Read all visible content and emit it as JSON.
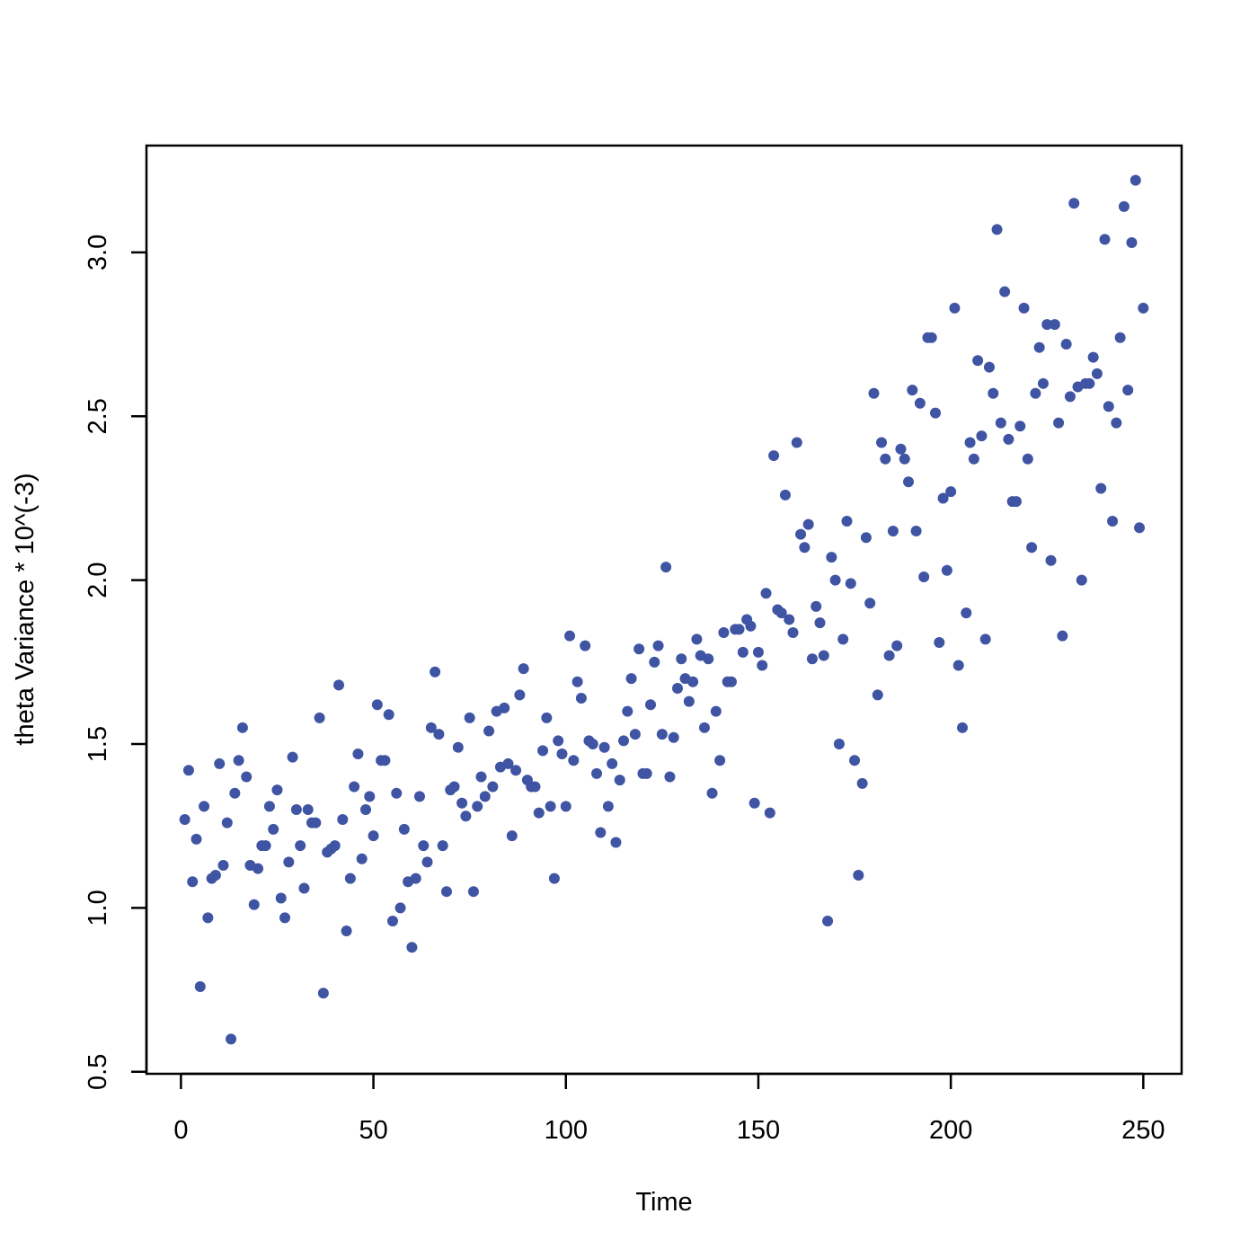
{
  "chart_data": {
    "type": "scatter",
    "xlabel": "Time",
    "ylabel": "theta Variance * 10^(-3)",
    "color": "#3f54a3",
    "xlim": [
      -8.96,
      259.96
    ],
    "ylim": [
      0.494,
      3.326
    ],
    "xticks": [
      0,
      50,
      100,
      150,
      200,
      250
    ],
    "yticks": [
      0.5,
      {
        "value": 1,
        "label": "1.0"
      },
      1.5,
      {
        "value": 2,
        "label": "2.0"
      },
      2.5,
      {
        "value": 3,
        "label": "3.0"
      }
    ],
    "x": [
      1,
      2,
      3,
      4,
      5,
      6,
      7,
      8,
      9,
      10,
      11,
      12,
      13,
      14,
      15,
      16,
      17,
      18,
      19,
      20,
      21,
      22,
      23,
      24,
      25,
      26,
      27,
      28,
      29,
      30,
      31,
      32,
      33,
      34,
      35,
      36,
      37,
      38,
      39,
      40,
      41,
      42,
      43,
      44,
      45,
      46,
      47,
      48,
      49,
      50,
      51,
      52,
      53,
      54,
      55,
      56,
      57,
      58,
      59,
      60,
      61,
      62,
      63,
      64,
      65,
      66,
      67,
      68,
      69,
      70,
      71,
      72,
      73,
      74,
      75,
      76,
      77,
      78,
      79,
      80,
      81,
      82,
      83,
      84,
      85,
      86,
      87,
      88,
      89,
      90,
      91,
      92,
      93,
      94,
      95,
      96,
      97,
      98,
      99,
      100,
      101,
      102,
      103,
      104,
      105,
      106,
      107,
      108,
      109,
      110,
      111,
      112,
      113,
      114,
      115,
      116,
      117,
      118,
      119,
      120,
      121,
      122,
      123,
      124,
      125,
      126,
      127,
      128,
      129,
      130,
      131,
      132,
      133,
      134,
      135,
      136,
      137,
      138,
      139,
      140,
      141,
      142,
      143,
      144,
      145,
      146,
      147,
      148,
      149,
      150,
      151,
      152,
      153,
      154,
      155,
      156,
      157,
      158,
      159,
      160,
      161,
      162,
      163,
      164,
      165,
      166,
      167,
      168,
      169,
      170,
      171,
      172,
      173,
      174,
      175,
      176,
      177,
      178,
      179,
      180,
      181,
      182,
      183,
      184,
      185,
      186,
      187,
      188,
      189,
      190,
      191,
      192,
      193,
      194,
      195,
      196,
      197,
      198,
      199,
      200,
      201,
      202,
      203,
      204,
      205,
      206,
      207,
      208,
      209,
      210,
      211,
      212,
      213,
      214,
      215,
      216,
      217,
      218,
      219,
      220,
      221,
      222,
      223,
      224,
      225,
      226,
      227,
      228,
      229,
      230,
      231,
      232,
      233,
      234,
      235,
      236,
      237,
      238,
      239,
      240,
      241,
      242,
      243,
      244,
      245,
      246,
      247,
      248,
      249,
      250
    ],
    "values": [
      1.27,
      1.42,
      1.08,
      1.21,
      0.76,
      1.31,
      0.97,
      1.09,
      1.1,
      1.44,
      1.13,
      1.26,
      0.6,
      1.35,
      1.45,
      1.55,
      1.4,
      1.13,
      1.01,
      1.12,
      1.19,
      1.19,
      1.31,
      1.24,
      1.36,
      1.03,
      0.97,
      1.14,
      1.46,
      1.3,
      1.19,
      1.06,
      1.3,
      1.26,
      1.26,
      1.58,
      0.74,
      1.17,
      1.18,
      1.19,
      1.68,
      1.27,
      0.93,
      1.09,
      1.37,
      1.47,
      1.15,
      1.3,
      1.34,
      1.22,
      1.62,
      1.45,
      1.45,
      1.59,
      0.96,
      1.35,
      1.0,
      1.24,
      1.08,
      0.88,
      1.09,
      1.34,
      1.19,
      1.14,
      1.55,
      1.72,
      1.53,
      1.19,
      1.05,
      1.36,
      1.37,
      1.49,
      1.32,
      1.28,
      1.58,
      1.05,
      1.31,
      1.4,
      1.34,
      1.54,
      1.37,
      1.6,
      1.43,
      1.61,
      1.44,
      1.22,
      1.42,
      1.65,
      1.73,
      1.39,
      1.37,
      1.37,
      1.29,
      1.48,
      1.58,
      1.31,
      1.09,
      1.51,
      1.47,
      1.31,
      1.83,
      1.45,
      1.69,
      1.64,
      1.8,
      1.51,
      1.5,
      1.41,
      1.23,
      1.49,
      1.31,
      1.44,
      1.2,
      1.39,
      1.51,
      1.6,
      1.7,
      1.53,
      1.79,
      1.41,
      1.41,
      1.62,
      1.75,
      1.8,
      1.53,
      2.04,
      1.4,
      1.52,
      1.67,
      1.76,
      1.7,
      1.63,
      1.69,
      1.82,
      1.77,
      1.55,
      1.76,
      1.35,
      1.6,
      1.45,
      1.84,
      1.69,
      1.69,
      1.85,
      1.85,
      1.78,
      1.88,
      1.86,
      1.32,
      1.78,
      1.74,
      1.96,
      1.29,
      2.38,
      1.91,
      1.9,
      2.26,
      1.88,
      1.84,
      2.42,
      2.14,
      2.1,
      2.17,
      1.76,
      1.92,
      1.87,
      1.77,
      0.96,
      2.07,
      2.0,
      1.5,
      1.82,
      2.18,
      1.99,
      1.45,
      1.1,
      1.38,
      2.13,
      1.93,
      2.57,
      1.65,
      2.42,
      2.37,
      1.77,
      2.15,
      1.8,
      2.4,
      2.37,
      2.3,
      2.58,
      2.15,
      2.54,
      2.01,
      2.74,
      2.74,
      2.51,
      1.81,
      2.25,
      2.03,
      2.27,
      2.83,
      1.74,
      1.55,
      1.9,
      2.42,
      2.37,
      2.67,
      2.44,
      1.82,
      2.65,
      2.57,
      3.07,
      2.48,
      2.88,
      2.43,
      2.24,
      2.24,
      2.47,
      2.83,
      2.37,
      2.1,
      2.57,
      2.71,
      2.6,
      2.78,
      2.06,
      2.78,
      2.48,
      1.83,
      2.72,
      2.56,
      3.15,
      2.59,
      2.0,
      2.6,
      2.6,
      2.68,
      2.63,
      2.28,
      3.04,
      2.53,
      2.18,
      2.48,
      2.74,
      3.14,
      2.58,
      3.03,
      3.22,
      2.16,
      2.83
    ]
  }
}
